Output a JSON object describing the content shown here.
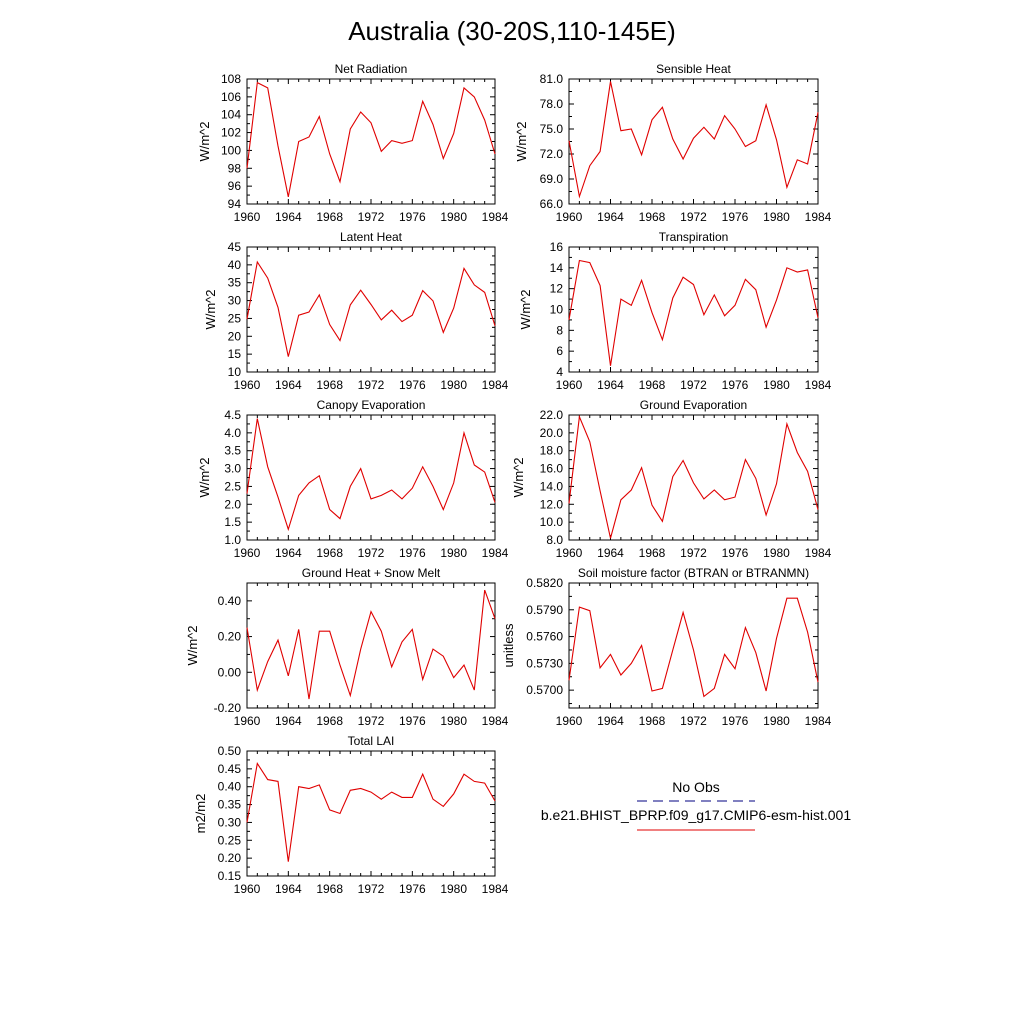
{
  "figure_title": "Australia (30-20S,110-145E)",
  "legend": {
    "obs_label": "No Obs",
    "model_label": "b.e21.BHIST_BPRP.f09_g17.CMIP6-esm-hist.001",
    "colors": {
      "obs": "#000080",
      "model": "#e00000"
    }
  },
  "chart_data": [
    {
      "type": "line",
      "title": "Net Radiation",
      "ylabel": "W/m^2",
      "xlim": [
        1960,
        1984
      ],
      "ylim": [
        94,
        108
      ],
      "yticks": [
        94,
        96,
        98,
        100,
        102,
        104,
        106,
        108
      ],
      "ytick_labels": [
        "94",
        "96",
        "98",
        "100",
        "102",
        "104",
        "106",
        "108"
      ],
      "xticks": [
        1960,
        1964,
        1968,
        1972,
        1976,
        1980,
        1984
      ],
      "xtick_labels": [
        "1960",
        "1964",
        "1968",
        "1972",
        "1976",
        "1980",
        "1984"
      ],
      "x": [
        1960,
        1961,
        1962,
        1963,
        1964,
        1965,
        1966,
        1967,
        1968,
        1969,
        1970,
        1971,
        1972,
        1973,
        1974,
        1975,
        1976,
        1977,
        1978,
        1979,
        1980,
        1981,
        1982,
        1983,
        1984
      ],
      "series": [
        {
          "values": [
            98.0,
            107.6,
            107.0,
            100.5,
            94.8,
            101.0,
            101.5,
            103.8,
            99.6,
            96.5,
            102.4,
            104.3,
            103.1,
            99.9,
            101.1,
            100.8,
            101.1,
            105.5,
            102.9,
            99.1,
            101.9,
            107.0,
            106.0,
            103.4,
            99.6
          ],
          "color": "#e00000"
        }
      ]
    },
    {
      "type": "line",
      "title": "Sensible Heat",
      "ylabel": "W/m^2",
      "xlim": [
        1960,
        1984
      ],
      "ylim": [
        66.0,
        81.0
      ],
      "yticks": [
        66.0,
        69.0,
        72.0,
        75.0,
        78.0,
        81.0
      ],
      "ytick_labels": [
        "66.0",
        "69.0",
        "72.0",
        "75.0",
        "78.0",
        "81.0"
      ],
      "xticks": [
        1960,
        1964,
        1968,
        1972,
        1976,
        1980,
        1984
      ],
      "xtick_labels": [
        "1960",
        "1964",
        "1968",
        "1972",
        "1976",
        "1980",
        "1984"
      ],
      "x": [
        1960,
        1961,
        1962,
        1963,
        1964,
        1965,
        1966,
        1967,
        1968,
        1969,
        1970,
        1971,
        1972,
        1973,
        1974,
        1975,
        1976,
        1977,
        1978,
        1979,
        1980,
        1981,
        1982,
        1983,
        1984
      ],
      "series": [
        {
          "values": [
            73.6,
            66.9,
            70.6,
            72.3,
            80.7,
            74.8,
            75.0,
            71.9,
            76.1,
            77.6,
            73.8,
            71.4,
            73.9,
            75.2,
            73.8,
            76.6,
            75.0,
            72.9,
            73.6,
            77.9,
            73.7,
            68.0,
            71.3,
            70.8,
            77.0
          ],
          "color": "#e00000"
        }
      ]
    },
    {
      "type": "line",
      "title": "Latent Heat",
      "ylabel": "W/m^2",
      "xlim": [
        1960,
        1984
      ],
      "ylim": [
        10,
        45
      ],
      "yticks": [
        10,
        15,
        20,
        25,
        30,
        35,
        40,
        45
      ],
      "ytick_labels": [
        "10",
        "15",
        "20",
        "25",
        "30",
        "35",
        "40",
        "45"
      ],
      "xticks": [
        1960,
        1964,
        1968,
        1972,
        1976,
        1980,
        1984
      ],
      "xtick_labels": [
        "1960",
        "1964",
        "1968",
        "1972",
        "1976",
        "1980",
        "1984"
      ],
      "x": [
        1960,
        1961,
        1962,
        1963,
        1964,
        1965,
        1966,
        1967,
        1968,
        1969,
        1970,
        1971,
        1972,
        1973,
        1974,
        1975,
        1976,
        1977,
        1978,
        1979,
        1980,
        1981,
        1982,
        1983,
        1984
      ],
      "series": [
        {
          "values": [
            24.8,
            40.8,
            36.3,
            28.1,
            14.3,
            25.9,
            26.8,
            31.6,
            23.3,
            18.8,
            28.8,
            32.9,
            28.9,
            24.6,
            27.3,
            24.1,
            25.9,
            32.8,
            29.9,
            21.1,
            27.9,
            39.0,
            34.4,
            32.3,
            22.9
          ],
          "color": "#e00000"
        }
      ]
    },
    {
      "type": "line",
      "title": "Transpiration",
      "ylabel": "W/m^2",
      "xlim": [
        1960,
        1984
      ],
      "ylim": [
        4,
        16
      ],
      "yticks": [
        4,
        6,
        8,
        10,
        12,
        14,
        16
      ],
      "ytick_labels": [
        "4",
        "6",
        "8",
        "10",
        "12",
        "14",
        "16"
      ],
      "xticks": [
        1960,
        1964,
        1968,
        1972,
        1976,
        1980,
        1984
      ],
      "xtick_labels": [
        "1960",
        "1964",
        "1968",
        "1972",
        "1976",
        "1980",
        "1984"
      ],
      "x": [
        1960,
        1961,
        1962,
        1963,
        1964,
        1965,
        1966,
        1967,
        1968,
        1969,
        1970,
        1971,
        1972,
        1973,
        1974,
        1975,
        1976,
        1977,
        1978,
        1979,
        1980,
        1981,
        1982,
        1983,
        1984
      ],
      "series": [
        {
          "values": [
            9.0,
            14.7,
            14.5,
            12.3,
            4.6,
            11.0,
            10.4,
            12.8,
            9.7,
            7.1,
            11.1,
            13.1,
            12.4,
            9.5,
            11.4,
            9.4,
            10.4,
            12.9,
            11.9,
            8.3,
            10.9,
            14.0,
            13.6,
            13.8,
            9.2
          ],
          "color": "#e00000"
        }
      ]
    },
    {
      "type": "line",
      "title": "Canopy Evaporation",
      "ylabel": "W/m^2",
      "xlim": [
        1960,
        1984
      ],
      "ylim": [
        1.0,
        4.5
      ],
      "yticks": [
        1.0,
        1.5,
        2.0,
        2.5,
        3.0,
        3.5,
        4.0,
        4.5
      ],
      "ytick_labels": [
        "1.0",
        "1.5",
        "2.0",
        "2.5",
        "3.0",
        "3.5",
        "4.0",
        "4.5"
      ],
      "xticks": [
        1960,
        1964,
        1968,
        1972,
        1976,
        1980,
        1984
      ],
      "xtick_labels": [
        "1960",
        "1964",
        "1968",
        "1972",
        "1976",
        "1980",
        "1984"
      ],
      "x": [
        1960,
        1961,
        1962,
        1963,
        1964,
        1965,
        1966,
        1967,
        1968,
        1969,
        1970,
        1971,
        1972,
        1973,
        1974,
        1975,
        1976,
        1977,
        1978,
        1979,
        1980,
        1981,
        1982,
        1983,
        1984
      ],
      "series": [
        {
          "values": [
            2.3,
            4.4,
            3.05,
            2.2,
            1.3,
            2.25,
            2.6,
            2.8,
            1.85,
            1.6,
            2.5,
            3.0,
            2.15,
            2.25,
            2.4,
            2.15,
            2.45,
            3.05,
            2.5,
            1.85,
            2.6,
            4.0,
            3.1,
            2.9,
            2.05
          ],
          "color": "#e00000"
        }
      ]
    },
    {
      "type": "line",
      "title": "Ground Evaporation",
      "ylabel": "W/m^2",
      "xlim": [
        1960,
        1984
      ],
      "ylim": [
        8.0,
        22.0
      ],
      "yticks": [
        8.0,
        10.0,
        12.0,
        14.0,
        16.0,
        18.0,
        20.0,
        22.0
      ],
      "ytick_labels": [
        "8.0",
        "10.0",
        "12.0",
        "14.0",
        "16.0",
        "18.0",
        "20.0",
        "22.0"
      ],
      "xticks": [
        1960,
        1964,
        1968,
        1972,
        1976,
        1980,
        1984
      ],
      "xtick_labels": [
        "1960",
        "1964",
        "1968",
        "1972",
        "1976",
        "1980",
        "1984"
      ],
      "x": [
        1960,
        1961,
        1962,
        1963,
        1964,
        1965,
        1966,
        1967,
        1968,
        1969,
        1970,
        1971,
        1972,
        1973,
        1974,
        1975,
        1976,
        1977,
        1978,
        1979,
        1980,
        1981,
        1982,
        1983,
        1984
      ],
      "series": [
        {
          "values": [
            12.1,
            21.8,
            19.0,
            13.5,
            8.2,
            12.5,
            13.6,
            16.1,
            11.9,
            10.1,
            15.1,
            16.9,
            14.4,
            12.6,
            13.6,
            12.5,
            12.8,
            17.0,
            14.9,
            10.8,
            14.3,
            21.0,
            17.8,
            15.7,
            11.4
          ],
          "color": "#e00000"
        }
      ]
    },
    {
      "type": "line",
      "title": "Ground Heat + Snow Melt",
      "ylabel": "W/m^2",
      "xlim": [
        1960,
        1984
      ],
      "ylim": [
        -0.2,
        0.5
      ],
      "yticks": [
        -0.2,
        0.0,
        0.2,
        0.4
      ],
      "ytick_labels": [
        "-0.20",
        "0.00",
        "0.20",
        "0.40"
      ],
      "xticks": [
        1960,
        1964,
        1968,
        1972,
        1976,
        1980,
        1984
      ],
      "xtick_labels": [
        "1960",
        "1964",
        "1968",
        "1972",
        "1976",
        "1980",
        "1984"
      ],
      "x": [
        1960,
        1961,
        1962,
        1963,
        1964,
        1965,
        1966,
        1967,
        1968,
        1969,
        1970,
        1971,
        1972,
        1973,
        1974,
        1975,
        1976,
        1977,
        1978,
        1979,
        1980,
        1981,
        1982,
        1983,
        1984
      ],
      "series": [
        {
          "values": [
            0.25,
            -0.1,
            0.06,
            0.18,
            -0.02,
            0.24,
            -0.15,
            0.23,
            0.23,
            0.04,
            -0.13,
            0.13,
            0.34,
            0.23,
            0.03,
            0.17,
            0.24,
            -0.04,
            0.13,
            0.09,
            -0.03,
            0.04,
            -0.1,
            0.46,
            0.3
          ],
          "color": "#e00000"
        }
      ]
    },
    {
      "type": "line",
      "title": "Soil moisture factor (BTRAN or BTRANMN)",
      "ylabel": "unitless",
      "xlim": [
        1960,
        1984
      ],
      "ylim": [
        0.568,
        0.582
      ],
      "yticks": [
        0.57,
        0.573,
        0.576,
        0.579,
        0.582
      ],
      "ytick_labels": [
        "0.5700",
        "0.5730",
        "0.5760",
        "0.5790",
        "0.5820"
      ],
      "xticks": [
        1960,
        1964,
        1968,
        1972,
        1976,
        1980,
        1984
      ],
      "xtick_labels": [
        "1960",
        "1964",
        "1968",
        "1972",
        "1976",
        "1980",
        "1984"
      ],
      "x": [
        1960,
        1961,
        1962,
        1963,
        1964,
        1965,
        1966,
        1967,
        1968,
        1969,
        1970,
        1971,
        1972,
        1973,
        1974,
        1975,
        1976,
        1977,
        1978,
        1979,
        1980,
        1981,
        1982,
        1983,
        1984
      ],
      "series": [
        {
          "values": [
            0.5711,
            0.5793,
            0.5789,
            0.5725,
            0.574,
            0.5717,
            0.573,
            0.575,
            0.5699,
            0.5702,
            0.5745,
            0.5787,
            0.5745,
            0.5693,
            0.5702,
            0.574,
            0.5724,
            0.577,
            0.5742,
            0.5699,
            0.5758,
            0.5803,
            0.5803,
            0.5765,
            0.5709
          ],
          "color": "#e00000"
        }
      ]
    },
    {
      "type": "line",
      "title": "Total LAI",
      "ylabel": "m2/m2",
      "xlim": [
        1960,
        1984
      ],
      "ylim": [
        0.15,
        0.5
      ],
      "yticks": [
        0.15,
        0.2,
        0.25,
        0.3,
        0.35,
        0.4,
        0.45,
        0.5
      ],
      "ytick_labels": [
        "0.15",
        "0.20",
        "0.25",
        "0.30",
        "0.35",
        "0.40",
        "0.45",
        "0.50"
      ],
      "xticks": [
        1960,
        1964,
        1968,
        1972,
        1976,
        1980,
        1984
      ],
      "xtick_labels": [
        "1960",
        "1964",
        "1968",
        "1972",
        "1976",
        "1980",
        "1984"
      ],
      "x": [
        1960,
        1961,
        1962,
        1963,
        1964,
        1965,
        1966,
        1967,
        1968,
        1969,
        1970,
        1971,
        1972,
        1973,
        1974,
        1975,
        1976,
        1977,
        1978,
        1979,
        1980,
        1981,
        1982,
        1983,
        1984
      ],
      "series": [
        {
          "values": [
            0.3,
            0.465,
            0.42,
            0.415,
            0.19,
            0.4,
            0.395,
            0.405,
            0.335,
            0.325,
            0.39,
            0.395,
            0.385,
            0.365,
            0.385,
            0.37,
            0.37,
            0.435,
            0.365,
            0.345,
            0.38,
            0.435,
            0.415,
            0.41,
            0.36
          ],
          "color": "#e00000"
        }
      ]
    }
  ]
}
